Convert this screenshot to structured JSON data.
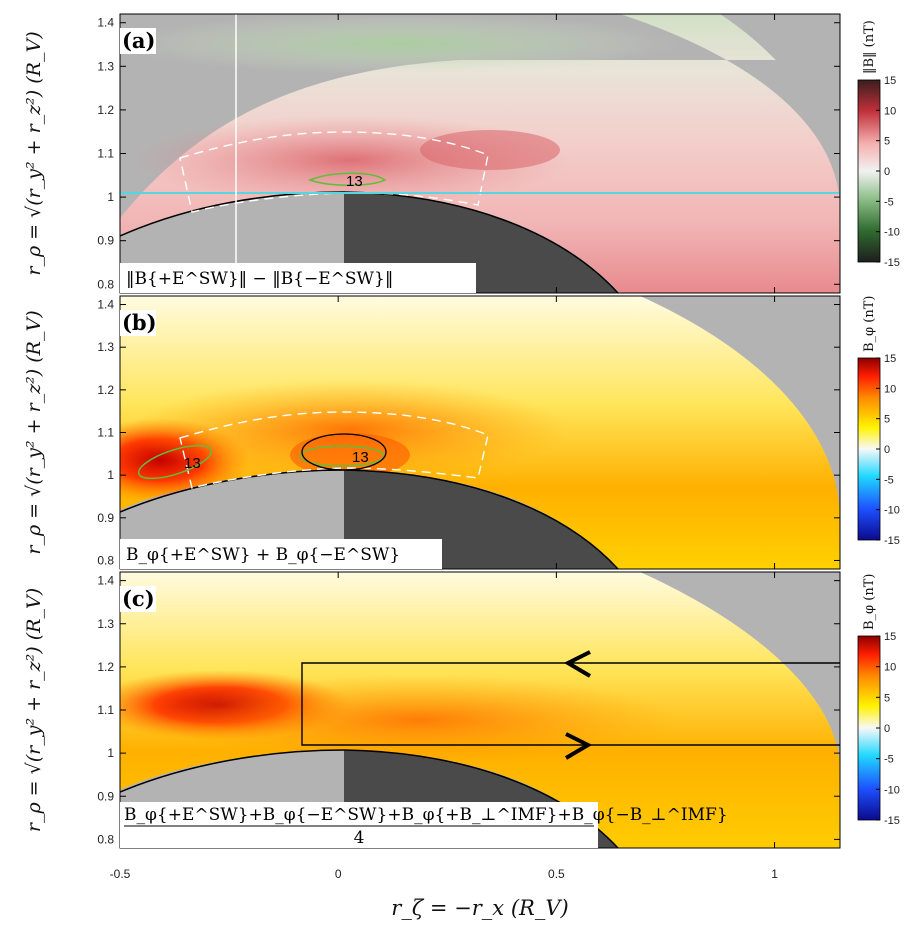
{
  "chart_data": [
    {
      "type": "heatmap",
      "panel": "(a)",
      "expression": "‖B{+E^SW}‖ − ‖B{−E^SW}‖",
      "colorbar_label": "‖B‖ (nT)",
      "colorbar_ticks": [
        "15",
        "10",
        "5",
        "0",
        "-5",
        "-10",
        "-15"
      ],
      "clim": [
        -15,
        15
      ],
      "colormap": "green-white-red diverging",
      "colormap_stops": [
        "#1e1e1e",
        "#2f6a2f",
        "#8fc08a",
        "#f2f2f2",
        "#f4b0b0",
        "#c0303a",
        "#3a1e1e"
      ],
      "ylabel": "r_ρ = √(r_y² + r_z²)  (R_V)",
      "xlim": [
        -0.5,
        1.15
      ],
      "ylim": [
        0.78,
        1.42
      ],
      "y_ticks": [
        "1.4",
        "1.3",
        "1.2",
        "1.1",
        "1",
        "0.9",
        "0.8"
      ],
      "contour_label": "13",
      "reference_lines": {
        "horizontal_y": 1.0,
        "vertical_x": -0.25
      }
    },
    {
      "type": "heatmap",
      "panel": "(b)",
      "expression": "B_φ{+E^SW} + B_φ{−E^SW}",
      "colorbar_label": "B_φ (nT)",
      "colorbar_ticks": [
        "15",
        "10",
        "5",
        "0",
        "-5",
        "-10",
        "-15"
      ],
      "clim": [
        -15,
        15
      ],
      "colormap": "jet-like",
      "colormap_stops": [
        "#0a0a8c",
        "#1e50ff",
        "#20d8ff",
        "#f8f8f8",
        "#fff200",
        "#ff8c00",
        "#ff1e00",
        "#8b0000"
      ],
      "ylabel": "r_ρ = √(r_y² + r_z²)  (R_V)",
      "xlim": [
        -0.5,
        1.15
      ],
      "ylim": [
        0.78,
        1.42
      ],
      "y_ticks": [
        "1.4",
        "1.3",
        "1.2",
        "1.1",
        "1",
        "0.9",
        "0.8"
      ],
      "contour_label": "13"
    },
    {
      "type": "heatmap",
      "panel": "(c)",
      "expression_numerator": "B_φ{+E^SW}+B_φ{−E^SW}+B_φ{+B_⊥^IMF}+B_φ{−B_⊥^IMF}",
      "expression_denominator": "4",
      "colorbar_label": "B_φ (nT)",
      "colorbar_ticks": [
        "15",
        "10",
        "5",
        "0",
        "-5",
        "-10",
        "-15"
      ],
      "clim": [
        -15,
        15
      ],
      "colormap": "jet-like",
      "ylabel": "r_ρ = √(r_y² + r_z²)  (R_V)",
      "xlabel": "r_ζ = −r_x  (R_V)",
      "x_ticks": [
        "-0.5",
        "0",
        "0.5",
        "1"
      ],
      "xlim": [
        -0.5,
        1.15
      ],
      "ylim": [
        0.78,
        1.42
      ],
      "y_ticks": [
        "1.4",
        "1.3",
        "1.2",
        "1.1",
        "1",
        "0.9",
        "0.8"
      ],
      "box_x_start": -0.1,
      "box_y": [
        1.01,
        1.2
      ]
    }
  ]
}
